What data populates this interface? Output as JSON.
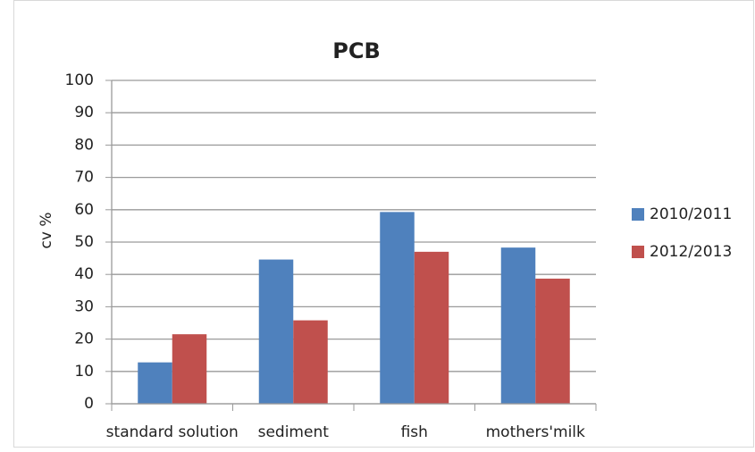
{
  "chart_data": {
    "type": "bar",
    "title": "PCB",
    "y_label": "cv %",
    "categories": [
      "standard solution",
      "sediment",
      "fish",
      "mothers'milk"
    ],
    "series": [
      {
        "name": "2010/2011",
        "color": "#4f81bd",
        "values": [
          12.8,
          44.6,
          59.3,
          48.3
        ]
      },
      {
        "name": "2012/2013",
        "color": "#c0504d",
        "values": [
          21.5,
          25.8,
          47,
          38.7
        ]
      }
    ],
    "ylim": [
      0,
      100
    ],
    "yticks": [
      0,
      10,
      20,
      30,
      40,
      50,
      60,
      70,
      80,
      90,
      100
    ],
    "grid": true,
    "legend": "right"
  }
}
